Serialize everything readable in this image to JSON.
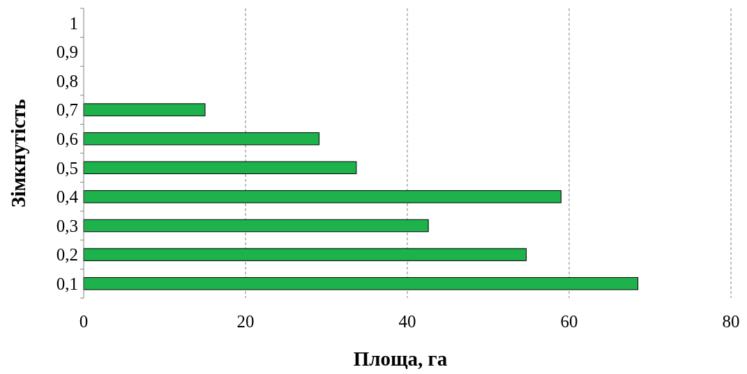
{
  "chart_data": {
    "type": "bar",
    "orientation": "horizontal",
    "xlabel": "Площа, га",
    "ylabel": "Зімкнутість",
    "categories": [
      "1",
      "0,9",
      "0,8",
      "0,7",
      "0,6",
      "0,5",
      "0,4",
      "0,3",
      "0,2",
      "0,1"
    ],
    "values": [
      null,
      null,
      null,
      15.0,
      29.1,
      33.7,
      59.0,
      42.6,
      54.7,
      68.5
    ],
    "color": "#1db24b",
    "xlim": [
      0,
      80
    ],
    "xticks": [
      0,
      20,
      40,
      60,
      80
    ],
    "grid": "x"
  }
}
